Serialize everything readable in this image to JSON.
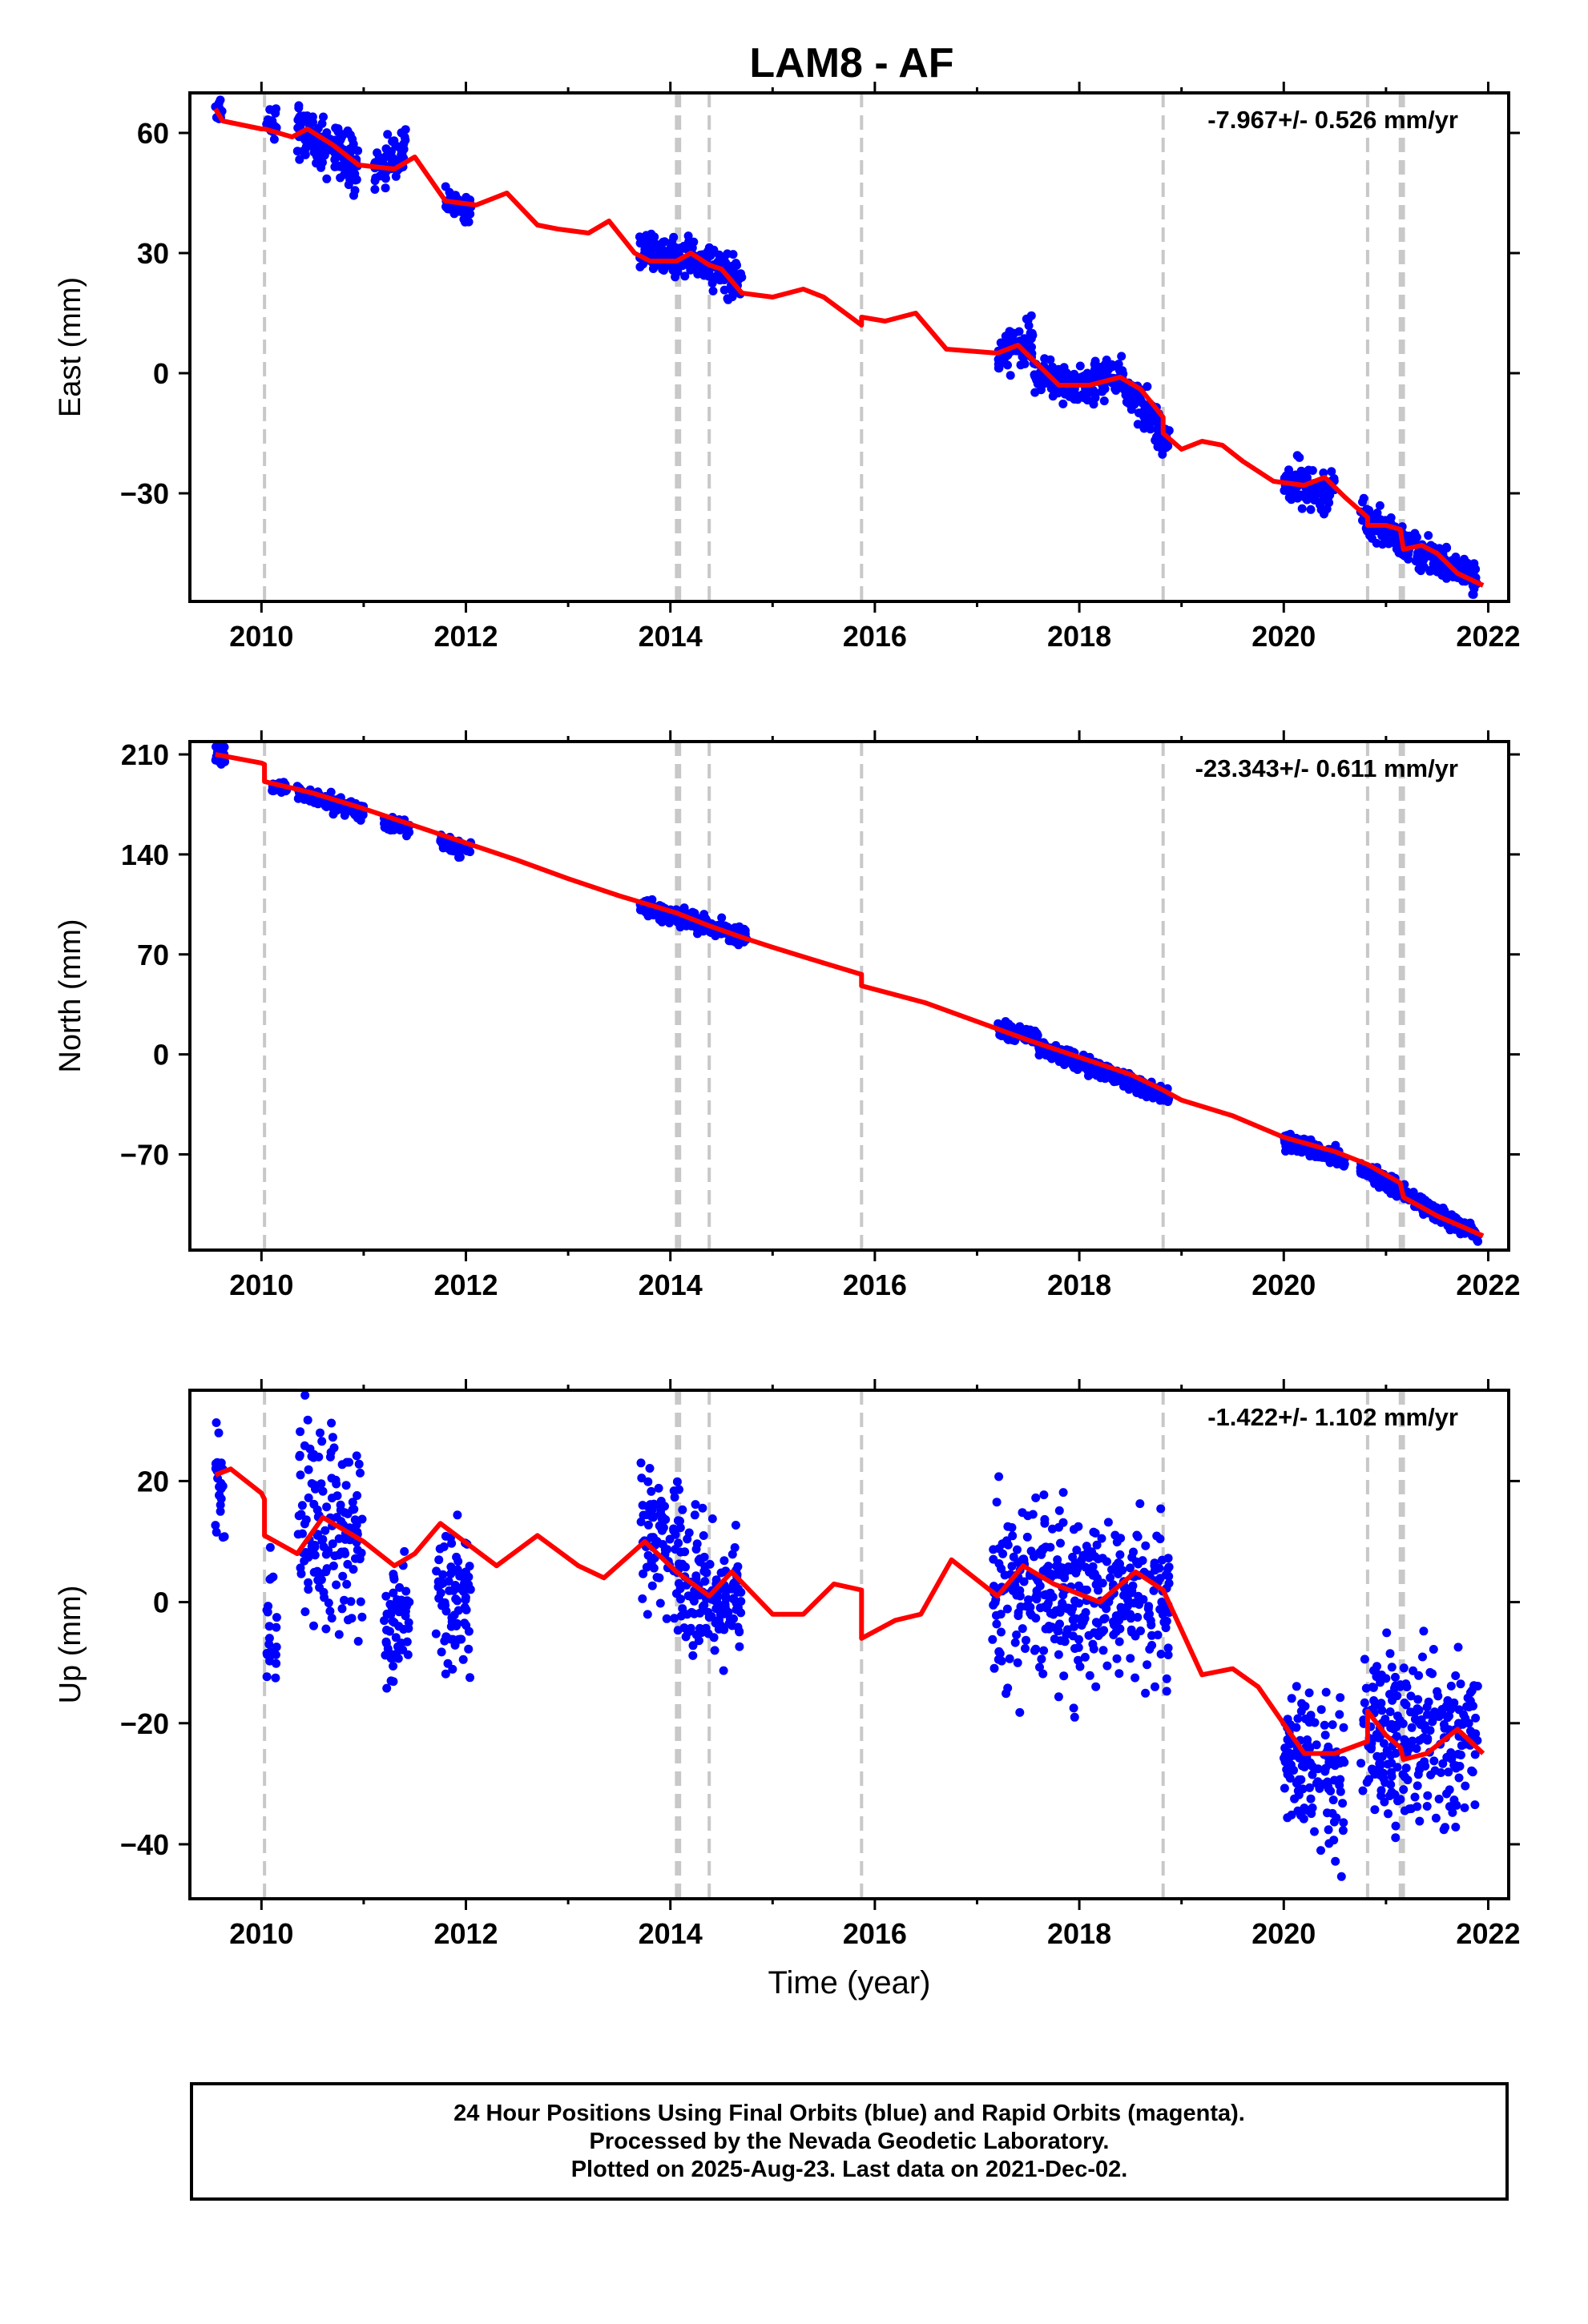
{
  "title": "LAM8 - AF",
  "colors": {
    "points": "#0000ff",
    "model": "#ff0000",
    "offsets": "#c8c8c8",
    "frame": "#000000"
  },
  "chart_data": [
    {
      "type": "scatter",
      "name": "east",
      "ylabel": "East (mm)",
      "xlabel": "",
      "rate_label": "-7.967+/- 0.526 mm/yr",
      "xlim": [
        2009.3,
        2022.2
      ],
      "ylim": [
        -57,
        70
      ],
      "xticks": [
        2010,
        2012,
        2014,
        2016,
        2018,
        2020,
        2022
      ],
      "yticks": [
        60,
        30,
        0,
        -30
      ],
      "ytick_labels": [
        "60",
        "30",
        "0",
        "−30"
      ],
      "offset_lines": [
        2010.03,
        2014.06,
        2014.09,
        2014.38,
        2015.87,
        2018.82,
        2020.82,
        2021.14,
        2021.17
      ],
      "point_clusters": [
        {
          "x": [
            2009.55,
            2009.62
          ],
          "y": [
            66,
            64
          ],
          "spread": 2
        },
        {
          "x": [
            2010.05,
            2010.15
          ],
          "y": [
            62,
            62
          ],
          "spread": 1.5
        },
        {
          "x": [
            2010.35,
            2010.95
          ],
          "y": [
            62,
            51
          ],
          "spread": 3
        },
        {
          "x": [
            2011.1,
            2011.42
          ],
          "y": [
            51,
            55
          ],
          "spread": 2.5
        },
        {
          "x": [
            2011.8,
            2012.05
          ],
          "y": [
            43,
            41
          ],
          "spread": 1.5
        },
        {
          "x": [
            2013.7,
            2014.15
          ],
          "y": [
            30,
            28
          ],
          "spread": 2.5
        },
        {
          "x": [
            2014.15,
            2014.7
          ],
          "y": [
            30,
            23
          ],
          "spread": 2.5
        },
        {
          "x": [
            2017.2,
            2017.55
          ],
          "y": [
            5,
            8
          ],
          "spread": 2.5
        },
        {
          "x": [
            2017.55,
            2017.95
          ],
          "y": [
            0,
            -3
          ],
          "spread": 2
        },
        {
          "x": [
            2017.95,
            2018.4
          ],
          "y": [
            -3,
            -1
          ],
          "spread": 2.5
        },
        {
          "x": [
            2018.4,
            2018.88
          ],
          "y": [
            -2,
            -17
          ],
          "spread": 2.5
        },
        {
          "x": [
            2020.0,
            2020.5
          ],
          "y": [
            -28,
            -30
          ],
          "spread": 2.5
        },
        {
          "x": [
            2020.75,
            2021.9
          ],
          "y": [
            -36,
            -52
          ],
          "spread": 2
        }
      ],
      "model": {
        "x": [
          2009.55,
          2009.62,
          2010.0,
          2010.03,
          2010.3,
          2010.45,
          2010.7,
          2010.95,
          2011.3,
          2011.5,
          2011.8,
          2012.1,
          2012.4,
          2012.7,
          2012.9,
          2013.2,
          2013.4,
          2013.65,
          2013.8,
          2014.06,
          2014.2,
          2014.38,
          2014.5,
          2014.7,
          2015.0,
          2015.3,
          2015.5,
          2015.87,
          2015.87,
          2016.1,
          2016.4,
          2016.7,
          2017.2,
          2017.4,
          2017.6,
          2017.8,
          2018.1,
          2018.4,
          2018.6,
          2018.82,
          2018.82,
          2019.0,
          2019.2,
          2019.4,
          2019.6,
          2019.9,
          2020.2,
          2020.4,
          2020.6,
          2020.82,
          2020.82,
          2021.0,
          2021.14,
          2021.17,
          2021.35,
          2021.5,
          2021.7,
          2021.95
        ],
        "y": [
          66,
          63,
          61,
          61,
          59,
          61,
          57,
          52,
          51,
          54,
          43,
          42,
          45,
          37,
          36,
          35,
          38,
          30,
          28,
          28,
          30,
          27,
          26,
          20,
          19,
          21,
          19,
          12,
          14,
          13,
          15,
          6,
          5,
          7,
          2,
          -3,
          -3,
          -1,
          -4,
          -11,
          -15,
          -19,
          -17,
          -18,
          -22,
          -27,
          -28,
          -26,
          -31,
          -36,
          -38,
          -38,
          -39,
          -44,
          -43,
          -45,
          -50,
          -53
        ]
      }
    },
    {
      "type": "scatter",
      "name": "north",
      "ylabel": "North (mm)",
      "xlabel": "",
      "rate_label": "-23.343+/- 0.611 mm/yr",
      "xlim": [
        2009.3,
        2022.2
      ],
      "ylim": [
        -137,
        219
      ],
      "xticks": [
        2010,
        2012,
        2014,
        2016,
        2018,
        2020,
        2022
      ],
      "yticks": [
        210,
        140,
        70,
        0,
        -70
      ],
      "ytick_labels": [
        "210",
        "140",
        "70",
        "0",
        "−70"
      ],
      "offset_lines": [
        2010.03,
        2014.06,
        2014.09,
        2014.38,
        2015.87,
        2018.82,
        2020.82,
        2021.14,
        2021.17
      ],
      "point_clusters": [
        {
          "x": [
            2009.55,
            2009.65
          ],
          "y": [
            211,
            210
          ],
          "spread": 3
        },
        {
          "x": [
            2010.1,
            2010.25
          ],
          "y": [
            188,
            186
          ],
          "spread": 2
        },
        {
          "x": [
            2010.35,
            2011.0
          ],
          "y": [
            184,
            170
          ],
          "spread": 3
        },
        {
          "x": [
            2011.2,
            2011.45
          ],
          "y": [
            162,
            158
          ],
          "spread": 2.5
        },
        {
          "x": [
            2011.75,
            2012.05
          ],
          "y": [
            148,
            143
          ],
          "spread": 2.5
        },
        {
          "x": [
            2013.7,
            2014.1
          ],
          "y": [
            104,
            97
          ],
          "spread": 3
        },
        {
          "x": [
            2014.1,
            2014.75
          ],
          "y": [
            96,
            82
          ],
          "spread": 3
        },
        {
          "x": [
            2017.2,
            2017.6
          ],
          "y": [
            17,
            13
          ],
          "spread": 2.5
        },
        {
          "x": [
            2017.6,
            2018.88
          ],
          "y": [
            6,
            -30
          ],
          "spread": 3
        },
        {
          "x": [
            2020.0,
            2020.6
          ],
          "y": [
            -60,
            -73
          ],
          "spread": 3
        },
        {
          "x": [
            2020.75,
            2021.9
          ],
          "y": [
            -80,
            -127
          ],
          "spread": 3
        }
      ],
      "model": {
        "x": [
          2009.55,
          2010.0,
          2010.03,
          2010.03,
          2010.5,
          2011.0,
          2011.5,
          2012.0,
          2012.5,
          2013.0,
          2013.5,
          2014.06,
          2014.38,
          2014.7,
          2015.0,
          2015.5,
          2015.87,
          2015.87,
          2016.5,
          2017.0,
          2017.5,
          2018.0,
          2018.5,
          2018.82,
          2019.0,
          2019.5,
          2020.0,
          2020.5,
          2020.82,
          2021.14,
          2021.17,
          2021.5,
          2021.95
        ],
        "y": [
          210,
          204,
          203,
          191,
          183,
          172,
          160,
          148,
          136,
          123,
          111,
          99,
          90,
          82,
          75,
          64,
          56,
          48,
          36,
          23,
          10,
          -2,
          -14,
          -25,
          -32,
          -43,
          -58,
          -68,
          -77,
          -90,
          -100,
          -113,
          -127
        ]
      }
    },
    {
      "type": "scatter",
      "name": "up",
      "ylabel": "Up (mm)",
      "xlabel": "Time (year)",
      "rate_label": "-1.422+/- 1.102 mm/yr",
      "xlim": [
        2009.3,
        2022.2
      ],
      "ylim": [
        -49,
        35
      ],
      "xticks": [
        2010,
        2012,
        2014,
        2016,
        2018,
        2020,
        2022
      ],
      "yticks": [
        20,
        0,
        -20,
        -40
      ],
      "ytick_labels": [
        "20",
        "0",
        "−20",
        "−40"
      ],
      "offset_lines": [
        2010.03,
        2014.06,
        2014.09,
        2014.38,
        2015.87,
        2018.82,
        2020.82,
        2021.14,
        2021.17
      ],
      "point_clusters": [
        {
          "x": [
            2009.55,
            2009.65
          ],
          "y": [
            20,
            18
          ],
          "spread": 5
        },
        {
          "x": [
            2010.05,
            2010.15
          ],
          "y": [
            -5,
            -8
          ],
          "spread": 6
        },
        {
          "x": [
            2010.35,
            2011.0
          ],
          "y": [
            14,
            10
          ],
          "spread": 8
        },
        {
          "x": [
            2011.2,
            2011.45
          ],
          "y": [
            -3,
            -2
          ],
          "spread": 5
        },
        {
          "x": [
            2011.7,
            2012.05
          ],
          "y": [
            1,
            -1
          ],
          "spread": 6
        },
        {
          "x": [
            2013.7,
            2014.1
          ],
          "y": [
            12,
            8
          ],
          "spread": 6
        },
        {
          "x": [
            2014.1,
            2014.7
          ],
          "y": [
            3,
            0
          ],
          "spread": 5
        },
        {
          "x": [
            2017.15,
            2018.88
          ],
          "y": [
            2,
            0
          ],
          "spread": 7
        },
        {
          "x": [
            2020.0,
            2020.6
          ],
          "y": [
            -25,
            -28
          ],
          "spread": 6
        },
        {
          "x": [
            2020.75,
            2021.9
          ],
          "y": [
            -22,
            -24
          ],
          "spread": 7
        }
      ],
      "model": {
        "x": [
          2009.55,
          2009.7,
          2010.0,
          2010.03,
          2010.03,
          2010.35,
          2010.6,
          2011.0,
          2011.3,
          2011.5,
          2011.75,
          2012.3,
          2012.7,
          2013.1,
          2013.35,
          2013.75,
          2014.06,
          2014.38,
          2014.6,
          2015.0,
          2015.3,
          2015.6,
          2015.87,
          2015.87,
          2016.2,
          2016.45,
          2016.75,
          2017.2,
          2017.45,
          2017.75,
          2018.2,
          2018.55,
          2018.82,
          2019.2,
          2019.5,
          2019.75,
          2020.2,
          2020.5,
          2020.82,
          2020.82,
          2021.0,
          2021.14,
          2021.17,
          2021.4,
          2021.7,
          2021.95
        ],
        "y": [
          21,
          22,
          18,
          17,
          11,
          8,
          14,
          10,
          6,
          8,
          13,
          6,
          11,
          6,
          4,
          10,
          5,
          1,
          5,
          -2,
          -2,
          3,
          2,
          -6,
          -3,
          -2,
          7,
          1,
          6,
          3,
          0,
          5,
          2,
          -12,
          -11,
          -14,
          -25,
          -25,
          -23,
          -18,
          -22,
          -24,
          -26,
          -25,
          -21,
          -25
        ]
      }
    }
  ],
  "footer": {
    "line1": "24 Hour Positions Using Final Orbits (blue) and Rapid Orbits (magenta).",
    "line2": "Processed by the Nevada Geodetic Laboratory.",
    "line3": "Plotted on 2025-Aug-23. Last data on 2021-Dec-02."
  }
}
